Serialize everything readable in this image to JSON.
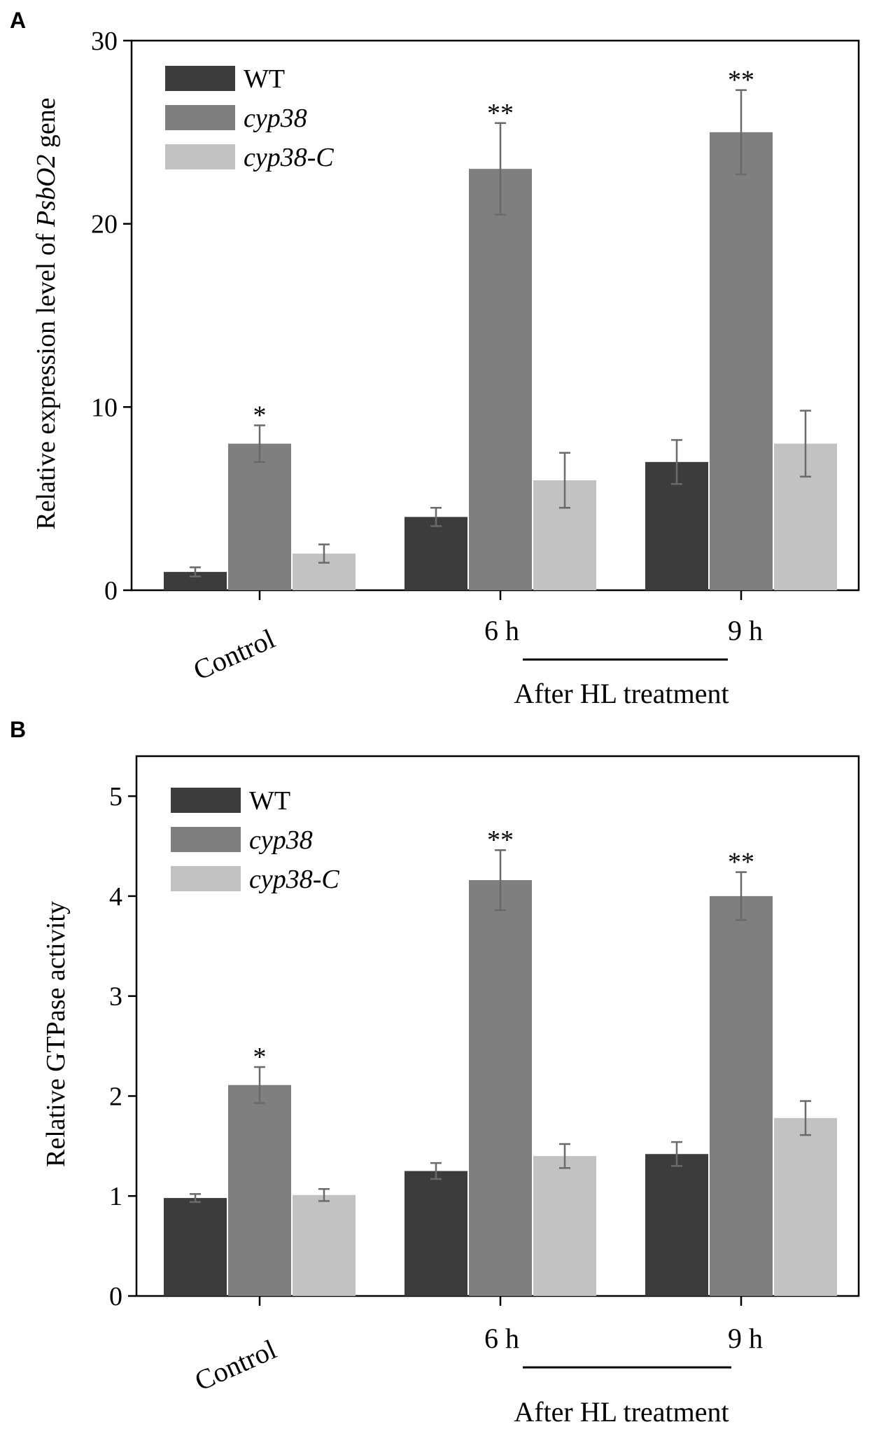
{
  "colors": {
    "WT": "#3c3c3c",
    "cyp38": "#7f7f7f",
    "cyp38-C": "#c2c2c2",
    "errorbar": "#6a6a6a",
    "axis": "#000000"
  },
  "chart_data": [
    {
      "type": "bar",
      "panel_label": "A",
      "title": "",
      "ylabel_parts": {
        "prefix": "Relative expression level of ",
        "gene": "PsbO2",
        "suffix": " gene"
      },
      "ylim": [
        0,
        30
      ],
      "yticks": [
        "0",
        "10",
        "20",
        "30"
      ],
      "ytick_values": [
        0,
        10,
        20,
        30
      ],
      "categories": [
        "Control",
        "6 h",
        "9 h"
      ],
      "group_label": "After HL treatment",
      "series": [
        {
          "name": "WT",
          "legend": "WT",
          "italic": false,
          "values": [
            1.0,
            4.0,
            7.0
          ],
          "errors": [
            0.25,
            0.5,
            1.2
          ]
        },
        {
          "name": "cyp38",
          "legend": "cyp38",
          "italic": true,
          "values": [
            8.0,
            23.0,
            25.0
          ],
          "errors": [
            1.0,
            2.5,
            2.3
          ]
        },
        {
          "name": "cyp38-C",
          "legend": "cyp38-C",
          "italic": true,
          "values": [
            2.0,
            6.0,
            8.0
          ],
          "errors": [
            0.5,
            1.5,
            1.8
          ]
        }
      ],
      "annotations": [
        {
          "text": "*",
          "category": 0,
          "series": 1
        },
        {
          "text": "**",
          "category": 1,
          "series": 1
        },
        {
          "text": "**",
          "category": 2,
          "series": 1
        }
      ]
    },
    {
      "type": "bar",
      "panel_label": "B",
      "title": "",
      "ylabel": "Relative GTPase activity",
      "ylim": [
        0,
        5.4
      ],
      "yticks": [
        "0",
        "1",
        "2",
        "3",
        "4",
        "5"
      ],
      "ytick_values": [
        0,
        1,
        2,
        3,
        4,
        5
      ],
      "categories": [
        "Control",
        "6 h",
        "9 h"
      ],
      "group_label": "After HL treatment",
      "series": [
        {
          "name": "WT",
          "legend": "WT",
          "italic": false,
          "values": [
            0.98,
            1.25,
            1.42
          ],
          "errors": [
            0.04,
            0.08,
            0.12
          ]
        },
        {
          "name": "cyp38",
          "legend": "cyp38",
          "italic": true,
          "values": [
            2.11,
            4.16,
            4.0
          ],
          "errors": [
            0.18,
            0.3,
            0.24
          ]
        },
        {
          "name": "cyp38-C",
          "legend": "cyp38-C",
          "italic": true,
          "values": [
            1.01,
            1.4,
            1.78
          ],
          "errors": [
            0.06,
            0.12,
            0.17
          ]
        }
      ],
      "annotations": [
        {
          "text": "*",
          "category": 0,
          "series": 1
        },
        {
          "text": "**",
          "category": 1,
          "series": 1
        },
        {
          "text": "**",
          "category": 2,
          "series": 1
        }
      ]
    }
  ]
}
